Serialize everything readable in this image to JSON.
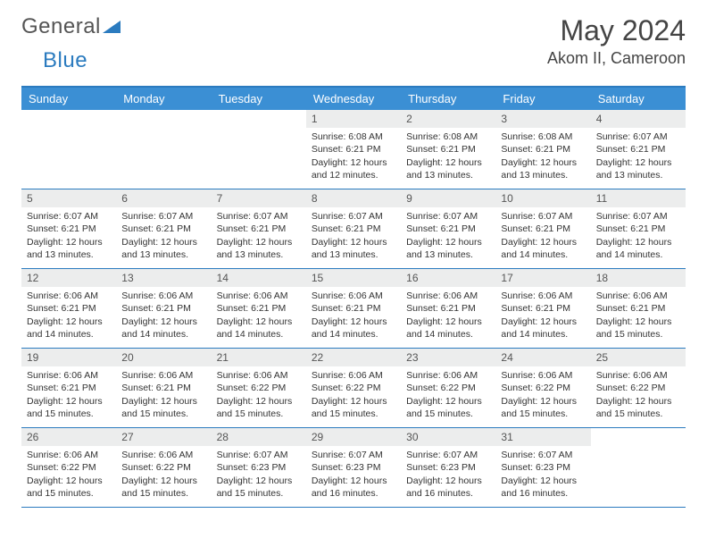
{
  "logo": {
    "text_a": "General",
    "text_b": "Blue"
  },
  "title": "May 2024",
  "location": "Akom II, Cameroon",
  "colors": {
    "header_bg": "#3b8fd4",
    "header_border": "#2b7bbf",
    "daynum_bg": "#eceded",
    "text": "#333333"
  },
  "days_of_week": [
    "Sunday",
    "Monday",
    "Tuesday",
    "Wednesday",
    "Thursday",
    "Friday",
    "Saturday"
  ],
  "weeks": [
    [
      {
        "n": "",
        "lines": []
      },
      {
        "n": "",
        "lines": []
      },
      {
        "n": "",
        "lines": []
      },
      {
        "n": "1",
        "lines": [
          "Sunrise: 6:08 AM",
          "Sunset: 6:21 PM",
          "Daylight: 12 hours and 12 minutes."
        ]
      },
      {
        "n": "2",
        "lines": [
          "Sunrise: 6:08 AM",
          "Sunset: 6:21 PM",
          "Daylight: 12 hours and 13 minutes."
        ]
      },
      {
        "n": "3",
        "lines": [
          "Sunrise: 6:08 AM",
          "Sunset: 6:21 PM",
          "Daylight: 12 hours and 13 minutes."
        ]
      },
      {
        "n": "4",
        "lines": [
          "Sunrise: 6:07 AM",
          "Sunset: 6:21 PM",
          "Daylight: 12 hours and 13 minutes."
        ]
      }
    ],
    [
      {
        "n": "5",
        "lines": [
          "Sunrise: 6:07 AM",
          "Sunset: 6:21 PM",
          "Daylight: 12 hours and 13 minutes."
        ]
      },
      {
        "n": "6",
        "lines": [
          "Sunrise: 6:07 AM",
          "Sunset: 6:21 PM",
          "Daylight: 12 hours and 13 minutes."
        ]
      },
      {
        "n": "7",
        "lines": [
          "Sunrise: 6:07 AM",
          "Sunset: 6:21 PM",
          "Daylight: 12 hours and 13 minutes."
        ]
      },
      {
        "n": "8",
        "lines": [
          "Sunrise: 6:07 AM",
          "Sunset: 6:21 PM",
          "Daylight: 12 hours and 13 minutes."
        ]
      },
      {
        "n": "9",
        "lines": [
          "Sunrise: 6:07 AM",
          "Sunset: 6:21 PM",
          "Daylight: 12 hours and 13 minutes."
        ]
      },
      {
        "n": "10",
        "lines": [
          "Sunrise: 6:07 AM",
          "Sunset: 6:21 PM",
          "Daylight: 12 hours and 14 minutes."
        ]
      },
      {
        "n": "11",
        "lines": [
          "Sunrise: 6:07 AM",
          "Sunset: 6:21 PM",
          "Daylight: 12 hours and 14 minutes."
        ]
      }
    ],
    [
      {
        "n": "12",
        "lines": [
          "Sunrise: 6:06 AM",
          "Sunset: 6:21 PM",
          "Daylight: 12 hours and 14 minutes."
        ]
      },
      {
        "n": "13",
        "lines": [
          "Sunrise: 6:06 AM",
          "Sunset: 6:21 PM",
          "Daylight: 12 hours and 14 minutes."
        ]
      },
      {
        "n": "14",
        "lines": [
          "Sunrise: 6:06 AM",
          "Sunset: 6:21 PM",
          "Daylight: 12 hours and 14 minutes."
        ]
      },
      {
        "n": "15",
        "lines": [
          "Sunrise: 6:06 AM",
          "Sunset: 6:21 PM",
          "Daylight: 12 hours and 14 minutes."
        ]
      },
      {
        "n": "16",
        "lines": [
          "Sunrise: 6:06 AM",
          "Sunset: 6:21 PM",
          "Daylight: 12 hours and 14 minutes."
        ]
      },
      {
        "n": "17",
        "lines": [
          "Sunrise: 6:06 AM",
          "Sunset: 6:21 PM",
          "Daylight: 12 hours and 14 minutes."
        ]
      },
      {
        "n": "18",
        "lines": [
          "Sunrise: 6:06 AM",
          "Sunset: 6:21 PM",
          "Daylight: 12 hours and 15 minutes."
        ]
      }
    ],
    [
      {
        "n": "19",
        "lines": [
          "Sunrise: 6:06 AM",
          "Sunset: 6:21 PM",
          "Daylight: 12 hours and 15 minutes."
        ]
      },
      {
        "n": "20",
        "lines": [
          "Sunrise: 6:06 AM",
          "Sunset: 6:21 PM",
          "Daylight: 12 hours and 15 minutes."
        ]
      },
      {
        "n": "21",
        "lines": [
          "Sunrise: 6:06 AM",
          "Sunset: 6:22 PM",
          "Daylight: 12 hours and 15 minutes."
        ]
      },
      {
        "n": "22",
        "lines": [
          "Sunrise: 6:06 AM",
          "Sunset: 6:22 PM",
          "Daylight: 12 hours and 15 minutes."
        ]
      },
      {
        "n": "23",
        "lines": [
          "Sunrise: 6:06 AM",
          "Sunset: 6:22 PM",
          "Daylight: 12 hours and 15 minutes."
        ]
      },
      {
        "n": "24",
        "lines": [
          "Sunrise: 6:06 AM",
          "Sunset: 6:22 PM",
          "Daylight: 12 hours and 15 minutes."
        ]
      },
      {
        "n": "25",
        "lines": [
          "Sunrise: 6:06 AM",
          "Sunset: 6:22 PM",
          "Daylight: 12 hours and 15 minutes."
        ]
      }
    ],
    [
      {
        "n": "26",
        "lines": [
          "Sunrise: 6:06 AM",
          "Sunset: 6:22 PM",
          "Daylight: 12 hours and 15 minutes."
        ]
      },
      {
        "n": "27",
        "lines": [
          "Sunrise: 6:06 AM",
          "Sunset: 6:22 PM",
          "Daylight: 12 hours and 15 minutes."
        ]
      },
      {
        "n": "28",
        "lines": [
          "Sunrise: 6:07 AM",
          "Sunset: 6:23 PM",
          "Daylight: 12 hours and 15 minutes."
        ]
      },
      {
        "n": "29",
        "lines": [
          "Sunrise: 6:07 AM",
          "Sunset: 6:23 PM",
          "Daylight: 12 hours and 16 minutes."
        ]
      },
      {
        "n": "30",
        "lines": [
          "Sunrise: 6:07 AM",
          "Sunset: 6:23 PM",
          "Daylight: 12 hours and 16 minutes."
        ]
      },
      {
        "n": "31",
        "lines": [
          "Sunrise: 6:07 AM",
          "Sunset: 6:23 PM",
          "Daylight: 12 hours and 16 minutes."
        ]
      },
      {
        "n": "",
        "lines": []
      }
    ]
  ]
}
